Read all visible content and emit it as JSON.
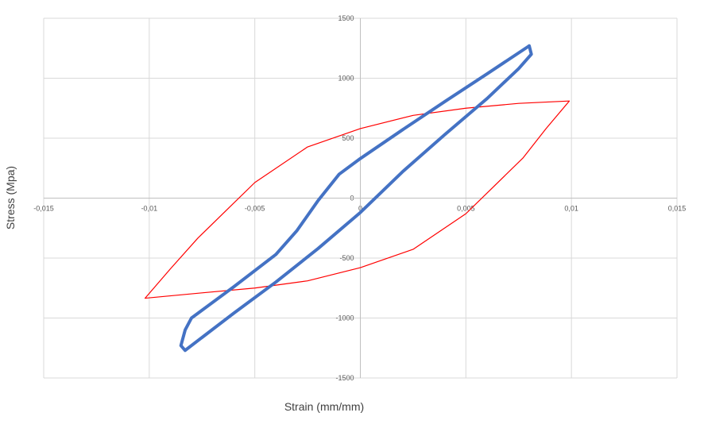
{
  "chart_data": {
    "type": "scatter-line",
    "x_label": "Strain (mm/mm)",
    "y_label": "Stress (Mpa)",
    "xlim": [
      -0.015,
      0.015
    ],
    "xticks": [
      {
        "value": -0.015,
        "label": "-0,015"
      },
      {
        "value": -0.01,
        "label": "-0,01"
      },
      {
        "value": -0.005,
        "label": "-0,005"
      },
      0,
      {
        "value": 0.005,
        "label": "0,005"
      },
      {
        "value": 0.01,
        "label": "0,01"
      },
      {
        "value": 0.015,
        "label": "0,015"
      }
    ],
    "ylim": [
      -1500,
      1500
    ],
    "yticks": [
      -1500,
      -1000,
      -500,
      0,
      500,
      1000,
      1500
    ],
    "grid": true,
    "series": [
      {
        "color": "#ff0000",
        "x": [
          -0.0102,
          -0.009,
          -0.0077,
          -0.005,
          -0.0025,
          0,
          0.0025,
          0.005,
          0.0075,
          0.0099,
          0.0088,
          0.0077,
          0.005,
          0.0025,
          0,
          -0.0025,
          -0.005,
          -0.0075,
          -0.0102
        ],
        "y": [
          -835,
          -590,
          -334,
          130,
          427,
          580,
          690,
          750,
          790,
          810,
          580,
          334,
          -130,
          -427,
          -580,
          -690,
          -750,
          -790,
          -835
        ]
      },
      {
        "color": "#4472c4",
        "x": [
          0.008,
          0.0081,
          0.0075,
          0.006,
          0.004,
          0.002,
          0,
          -0.002,
          -0.004,
          -0.006,
          -0.0083,
          -0.0085,
          -0.0083,
          -0.008,
          -0.006,
          -0.004,
          -0.003,
          -0.002,
          -0.001,
          0,
          0.002,
          0.004,
          0.006,
          0.008
        ],
        "y": [
          1270,
          1200,
          1080,
          830,
          530,
          220,
          -120,
          -420,
          -700,
          -960,
          -1270,
          -1230,
          -1100,
          -1000,
          -740,
          -470,
          -270,
          -20,
          200,
          330,
          570,
          805,
          1036,
          1270
        ]
      }
    ]
  }
}
